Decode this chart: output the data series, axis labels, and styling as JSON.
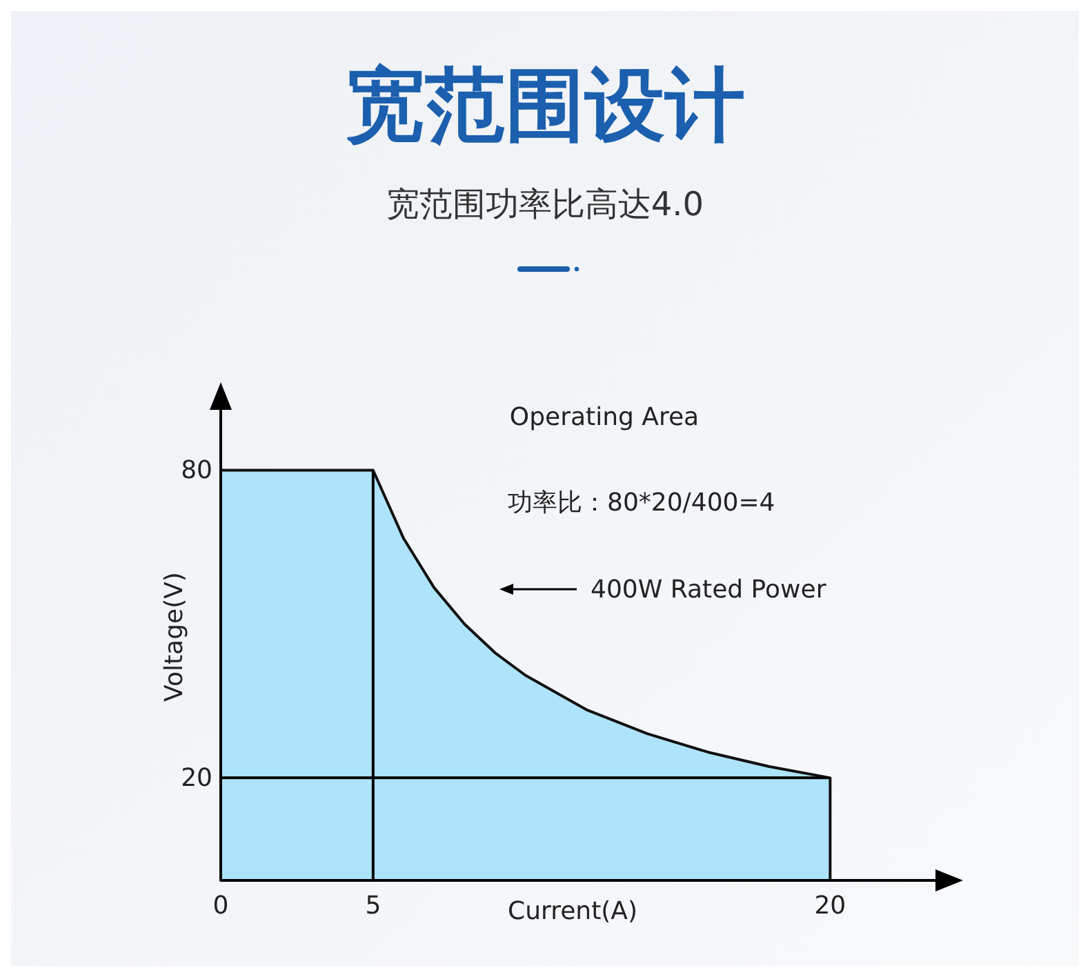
{
  "chart_data": {
    "type": "area",
    "title": "宽范围设计",
    "subtitle": "宽范围功率比高达4.0",
    "xlabel": "Current(A)",
    "ylabel": "Voltage(V)",
    "x": [
      0,
      5,
      6,
      7,
      8,
      9,
      10,
      12,
      14,
      16,
      18,
      20
    ],
    "series": [
      {
        "color": "#aee4fb",
        "values": [
          80,
          80,
          66.7,
          57.1,
          50,
          44.4,
          40,
          33.3,
          28.6,
          25,
          22.2,
          20
        ]
      }
    ],
    "xlim": [
      0,
      24
    ],
    "ylim": [
      0,
      95
    ],
    "xticks": [
      0,
      5,
      20
    ],
    "yticks": [
      20,
      80
    ],
    "ref_lines": [
      {
        "axis": "x",
        "value": 5,
        "color": "#000000"
      },
      {
        "axis": "y",
        "value": 20,
        "color": "#000000"
      }
    ],
    "annotations": [
      "Operating Area",
      "功率比：80*20/400=4",
      "400W Rated Power"
    ]
  }
}
